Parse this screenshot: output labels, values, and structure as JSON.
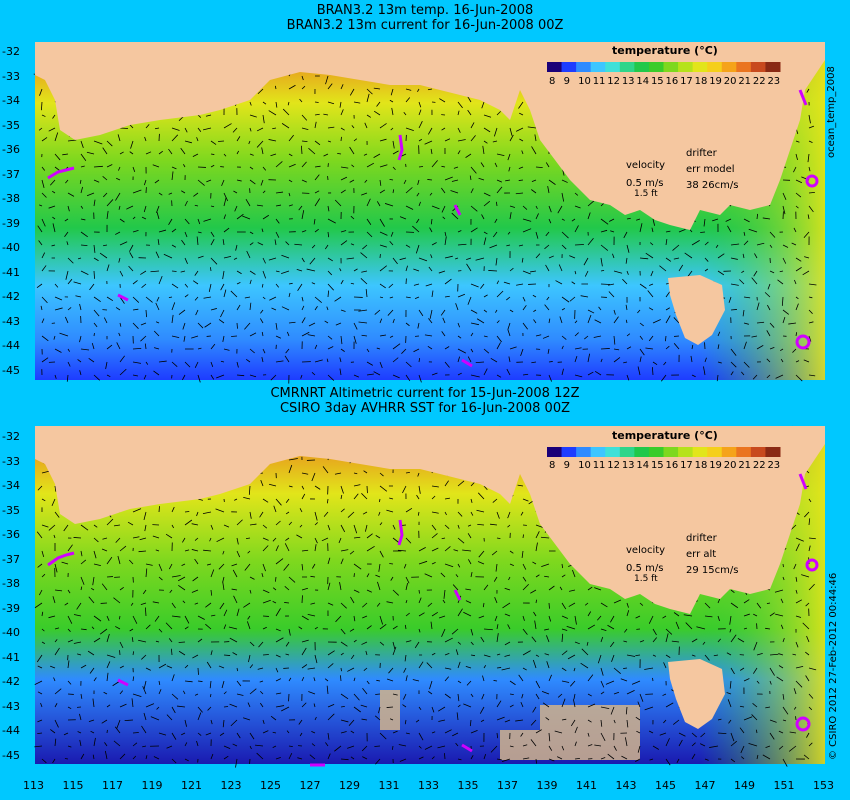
{
  "top_panel": {
    "title_line1": "BRAN3.2 13m temp. 16-Jun-2008",
    "title_line2": "BRAN3.2 13m current for 16-Jun-2008 00Z",
    "legend_title": "temperature (°C)",
    "velocity_label": "velocity",
    "velocity_scale": "0.5 m/s",
    "velocity_scale2": "1.5 ft",
    "drifter_label": "drifter",
    "err_label": "err model",
    "err_values": "38 26cm/s",
    "side_label": "ocean_temp_2008"
  },
  "bottom_panel": {
    "title_line1": "CMRNRT Altimetric current for 15-Jun-2008 12Z",
    "title_line2": "CSIRO 3day AVHRR SST for 16-Jun-2008 00Z",
    "legend_title": "temperature (°C)",
    "velocity_label": "velocity",
    "velocity_scale": "0.5 m/s",
    "velocity_scale2": "1.5 ft",
    "drifter_label": "drifter",
    "err_label": "err alt",
    "err_values": "29 15cm/s",
    "side_label": "© CSIRO 2012   27-Feb-2012 00:44:46"
  },
  "colorbar_ticks": [
    "8",
    "9",
    "10",
    "11",
    "12",
    "13",
    "14",
    "15",
    "16",
    "17",
    "18",
    "19",
    "20",
    "21",
    "22",
    "23"
  ],
  "colorbar_colors": [
    "#1a0078",
    "#1e3cff",
    "#2f8bff",
    "#3dc6ff",
    "#3fe0d8",
    "#2fd58a",
    "#22c84a",
    "#3acc2a",
    "#7ed81e",
    "#b6e21a",
    "#e2e51a",
    "#f5cf1a",
    "#f5a31a",
    "#ea7420",
    "#c84a1e",
    "#8a2a14"
  ],
  "y_axis_labels": [
    "-32",
    "-33",
    "-34",
    "-35",
    "-36",
    "-37",
    "-38",
    "-39",
    "-40",
    "-41",
    "-42",
    "-43",
    "-44",
    "-45"
  ],
  "x_axis_labels": [
    "113",
    "115",
    "117",
    "119",
    "121",
    "123",
    "125",
    "127",
    "129",
    "131",
    "133",
    "135",
    "137",
    "139",
    "141",
    "143",
    "145",
    "147",
    "149",
    "151",
    "153"
  ],
  "colors": {
    "background": "#00c8ff",
    "land": "#f5c7a0",
    "cold": "#1e3cff",
    "mid": "#3acc2a",
    "warm": "#e2e51a",
    "hot": "#ea7420",
    "drifter": "#d000ff"
  }
}
